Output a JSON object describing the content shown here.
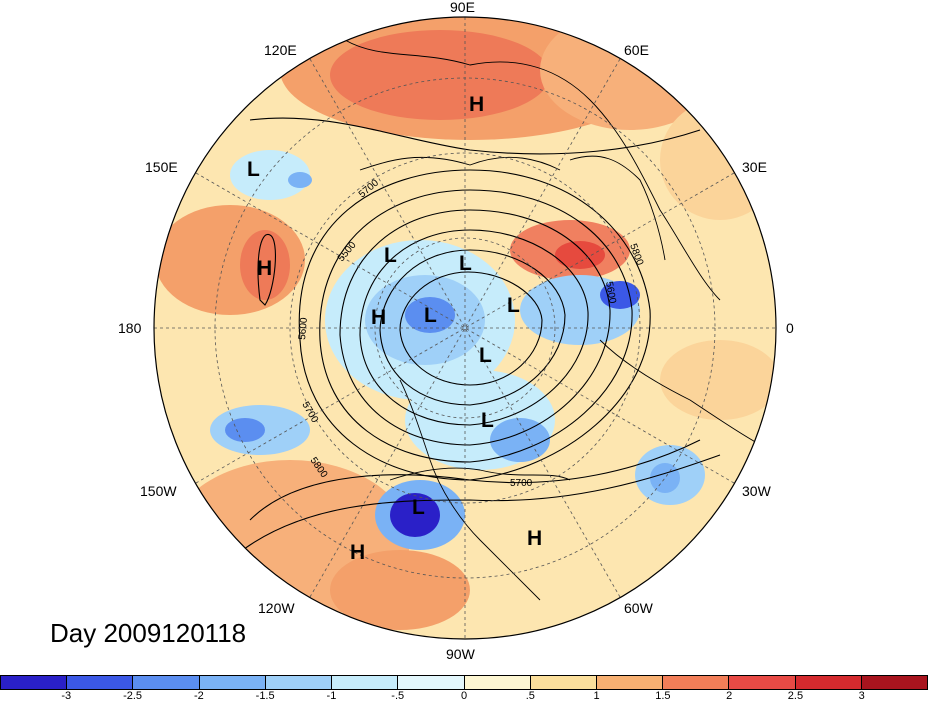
{
  "longitude_labels": {
    "n90e": "90E",
    "n120e": "120E",
    "n60e": "60E",
    "n150e": "150E",
    "n30e": "30E",
    "n180": "180",
    "n0": "0",
    "n150w": "150W",
    "n30w": "30W",
    "n120w": "120W",
    "n60w": "60W",
    "n90w": "90W"
  },
  "pressure_centers": [
    {
      "label": "H",
      "name": "high-siberia"
    },
    {
      "label": "L",
      "name": "low-east-asia"
    },
    {
      "label": "H",
      "name": "high-north-pacific"
    },
    {
      "label": "L",
      "name": "low-west-1"
    },
    {
      "label": "L",
      "name": "low-west-2"
    },
    {
      "label": "H",
      "name": "high-arctic"
    },
    {
      "label": "L",
      "name": "low-arctic-1"
    },
    {
      "label": "L",
      "name": "low-arctic-2"
    },
    {
      "label": "L",
      "name": "low-hudson"
    },
    {
      "label": "L",
      "name": "low-labrador"
    },
    {
      "label": "L",
      "name": "low-gulf-mexico"
    },
    {
      "label": "H",
      "name": "high-caribbean"
    },
    {
      "label": "H",
      "name": "high-east-pacific"
    }
  ],
  "contour_labels": [
    "5700",
    "5600",
    "5500",
    "5800",
    "5700",
    "5800",
    "5600",
    "5700"
  ],
  "title": "Day 2009120118",
  "colorbar": {
    "ticks": [
      "-3",
      "-2.5",
      "-2",
      "-1.5",
      "-1",
      "-.5",
      "0",
      ".5",
      "1",
      "1.5",
      "2",
      "2.5",
      "3"
    ],
    "colors": [
      "#2a20c8",
      "#3b58e6",
      "#5b8ef0",
      "#7ab2f5",
      "#9fd0f8",
      "#c6ecfb",
      "#e3f7fc",
      "#fdf6d2",
      "#fbdf9c",
      "#f7b072",
      "#f27e58",
      "#e84a45",
      "#d42a2e",
      "#a8141e"
    ]
  }
}
